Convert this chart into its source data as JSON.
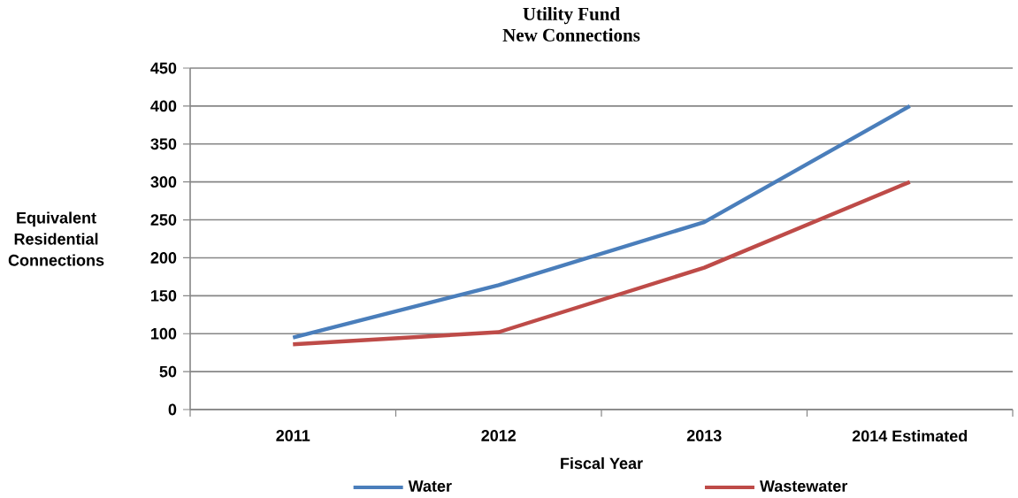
{
  "chart_data": {
    "type": "line",
    "title": "Utility Fund",
    "subtitle": "New Connections",
    "xlabel": "Fiscal Year",
    "ylabel": "Equivalent Residential Connections",
    "categories": [
      "2011",
      "2012",
      "2013",
      "2014 Estimated"
    ],
    "series": [
      {
        "name": "Water",
        "color": "#4a7ebb",
        "values": [
          95,
          164,
          247,
          400
        ]
      },
      {
        "name": "Wastewater",
        "color": "#be4b48",
        "values": [
          86,
          102,
          187,
          300
        ]
      }
    ],
    "ylim": [
      0,
      450
    ],
    "yticks": [
      0,
      50,
      100,
      150,
      200,
      250,
      300,
      350,
      400,
      450
    ],
    "grid": "y",
    "legend": "bottom",
    "marker": "none",
    "line_style": "solid"
  }
}
